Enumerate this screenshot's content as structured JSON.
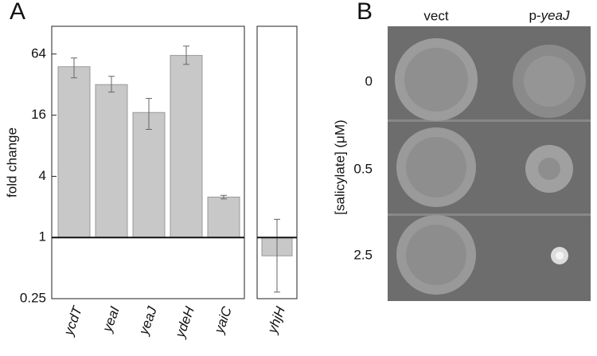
{
  "panel_labels": [
    "A",
    "B"
  ],
  "chart_data": {
    "type": "bar",
    "ylabel": "fold change",
    "log_scale": true,
    "categories": [
      "ycdT",
      "yeaI",
      "yeaJ",
      "ydeH",
      "yaiC",
      "yhjH"
    ],
    "values": [
      48,
      32,
      17,
      62,
      2.5,
      0.66
    ],
    "err_high": [
      58.5,
      38.6,
      23.4,
      76.6,
      2.6,
      1.51
    ],
    "err_low": [
      37.3,
      27,
      11.6,
      50.6,
      2.4,
      0.29
    ],
    "baseline": 1,
    "color": "#c8c8c8",
    "ylim": [
      0.25,
      120
    ],
    "yticks": [
      0.25,
      1,
      4,
      16,
      64
    ]
  },
  "panel_b": {
    "columns": [
      "vect",
      "p-yeaJ"
    ],
    "column_prefix": "p-",
    "column_italic": "yeaJ",
    "rows": [
      "0",
      "0.5",
      "2.5"
    ],
    "ylabel": "[salicylate] (μM)"
  }
}
